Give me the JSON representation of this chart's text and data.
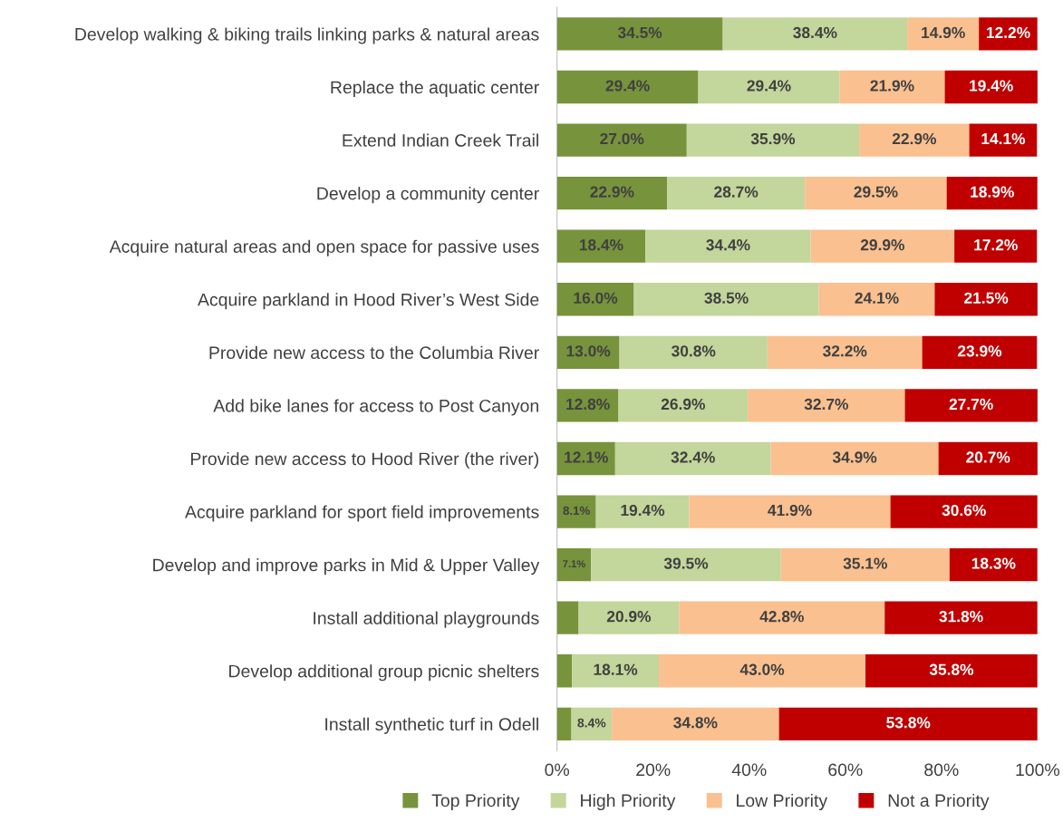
{
  "chart_data": {
    "type": "bar",
    "orientation": "horizontal",
    "stacked": true,
    "categories": [
      "Develop walking & biking trails linking parks & natural areas",
      "Replace the aquatic center",
      "Extend Indian Creek Trail",
      "Develop a community center",
      "Acquire natural areas and open space for passive uses",
      "Acquire parkland in Hood River’s West Side",
      "Provide new access to the Columbia River",
      "Add bike lanes for access to Post Canyon",
      "Provide new access to Hood River (the river)",
      "Acquire parkland for sport field improvements",
      "Develop and improve parks in Mid & Upper Valley",
      "Install additional playgrounds",
      "Develop additional group picnic shelters",
      "Install synthetic turf in Odell"
    ],
    "series": [
      {
        "name": "Top Priority",
        "color": "#77933c",
        "values": [
          34.5,
          29.4,
          27.0,
          22.9,
          18.4,
          16.0,
          13.0,
          12.8,
          12.1,
          8.1,
          7.1,
          4.5,
          3.1,
          3.0
        ],
        "value_labels": [
          "34.5%",
          "29.4%",
          "27.0%",
          "22.9%",
          "18.4%",
          "16.0%",
          "13.0%",
          "12.8%",
          "12.1%",
          "8.1%",
          "7.1%",
          null,
          null,
          null
        ]
      },
      {
        "name": "High Priority",
        "color": "#c3d69b",
        "values": [
          38.4,
          29.4,
          35.9,
          28.7,
          34.4,
          38.5,
          30.8,
          26.9,
          32.4,
          19.4,
          39.5,
          20.9,
          18.1,
          8.4
        ],
        "value_labels": [
          "38.4%",
          "29.4%",
          "35.9%",
          "28.7%",
          "34.4%",
          "38.5%",
          "30.8%",
          "26.9%",
          "32.4%",
          "19.4%",
          "39.5%",
          "20.9%",
          "18.1%",
          "8.4%"
        ]
      },
      {
        "name": "Low Priority",
        "color": "#fac090",
        "values": [
          14.9,
          21.9,
          22.9,
          29.5,
          29.9,
          24.1,
          32.2,
          32.7,
          34.9,
          41.9,
          35.1,
          42.8,
          43.0,
          34.8
        ],
        "value_labels": [
          "14.9%",
          "21.9%",
          "22.9%",
          "29.5%",
          "29.9%",
          "24.1%",
          "32.2%",
          "32.7%",
          "34.9%",
          "41.9%",
          "35.1%",
          "42.8%",
          "43.0%",
          "34.8%"
        ]
      },
      {
        "name": "Not a Priority",
        "color": "#c00000",
        "values": [
          12.2,
          19.4,
          14.1,
          18.9,
          17.2,
          21.5,
          23.9,
          27.7,
          20.7,
          30.6,
          18.3,
          31.8,
          35.8,
          53.8
        ],
        "value_labels": [
          "12.2%",
          "19.4%",
          "14.1%",
          "18.9%",
          "17.2%",
          "21.5%",
          "23.9%",
          "27.7%",
          "20.7%",
          "30.6%",
          "18.3%",
          "31.8%",
          "35.8%",
          "53.8%"
        ]
      }
    ],
    "xlim": [
      0,
      100
    ],
    "xticks": [
      {
        "value": 0,
        "label": "0%"
      },
      {
        "value": 20,
        "label": "20%"
      },
      {
        "value": 40,
        "label": "40%"
      },
      {
        "value": 60,
        "label": "60%"
      },
      {
        "value": 80,
        "label": "80%"
      },
      {
        "value": 100,
        "label": "100%"
      }
    ],
    "grid": false,
    "legend": "bottom"
  }
}
